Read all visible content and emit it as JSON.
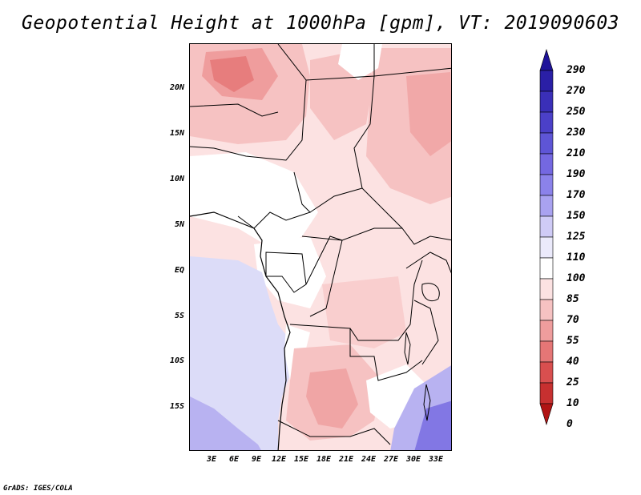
{
  "title": "Geopotential Height at 1000hPa [gpm], VT: 2019090603",
  "footer": "GrADS: IGES/COLA",
  "lat_labels": [
    "20N",
    "15N",
    "10N",
    "5N",
    "EQ",
    "5S",
    "10S",
    "15S"
  ],
  "lon_labels": [
    "3E",
    "6E",
    "9E",
    "12E",
    "15E",
    "18E",
    "21E",
    "24E",
    "27E",
    "30E",
    "33E"
  ],
  "legend": {
    "labels": [
      "290",
      "270",
      "250",
      "230",
      "210",
      "190",
      "170",
      "150",
      "125",
      "110",
      "100",
      "85",
      "70",
      "55",
      "40",
      "25",
      "10",
      "0"
    ],
    "colors": [
      "#1f139a",
      "#2a1fa6",
      "#3a2fb8",
      "#4b40c8",
      "#5e55d6",
      "#7468e1",
      "#8b82ea",
      "#a9a2f0",
      "#cfcbf6",
      "#ebeafb",
      "#ffffff",
      "#fce2e2",
      "#f6c2c2",
      "#ef9d9d",
      "#e57676",
      "#d94f4f",
      "#c73030",
      "#b01414"
    ]
  },
  "chart_data": {
    "type": "heatmap",
    "title": "Geopotential Height at 1000hPa [gpm], VT: 2019090603",
    "variable": "Geopotential Height at 1000hPa",
    "units": "gpm",
    "valid_time": "2019090603",
    "x_ticks": [
      "3E",
      "6E",
      "9E",
      "12E",
      "15E",
      "18E",
      "21E",
      "24E",
      "27E",
      "30E",
      "33E"
    ],
    "y_ticks": [
      "20N",
      "15N",
      "10N",
      "5N",
      "EQ",
      "5S",
      "10S",
      "15S"
    ],
    "xlim": [
      0,
      35
    ],
    "ylim": [
      -20,
      25
    ],
    "color_levels": [
      0,
      10,
      25,
      40,
      55,
      70,
      85,
      100,
      110,
      125,
      150,
      170,
      190,
      210,
      230,
      250,
      270,
      290
    ]
  }
}
